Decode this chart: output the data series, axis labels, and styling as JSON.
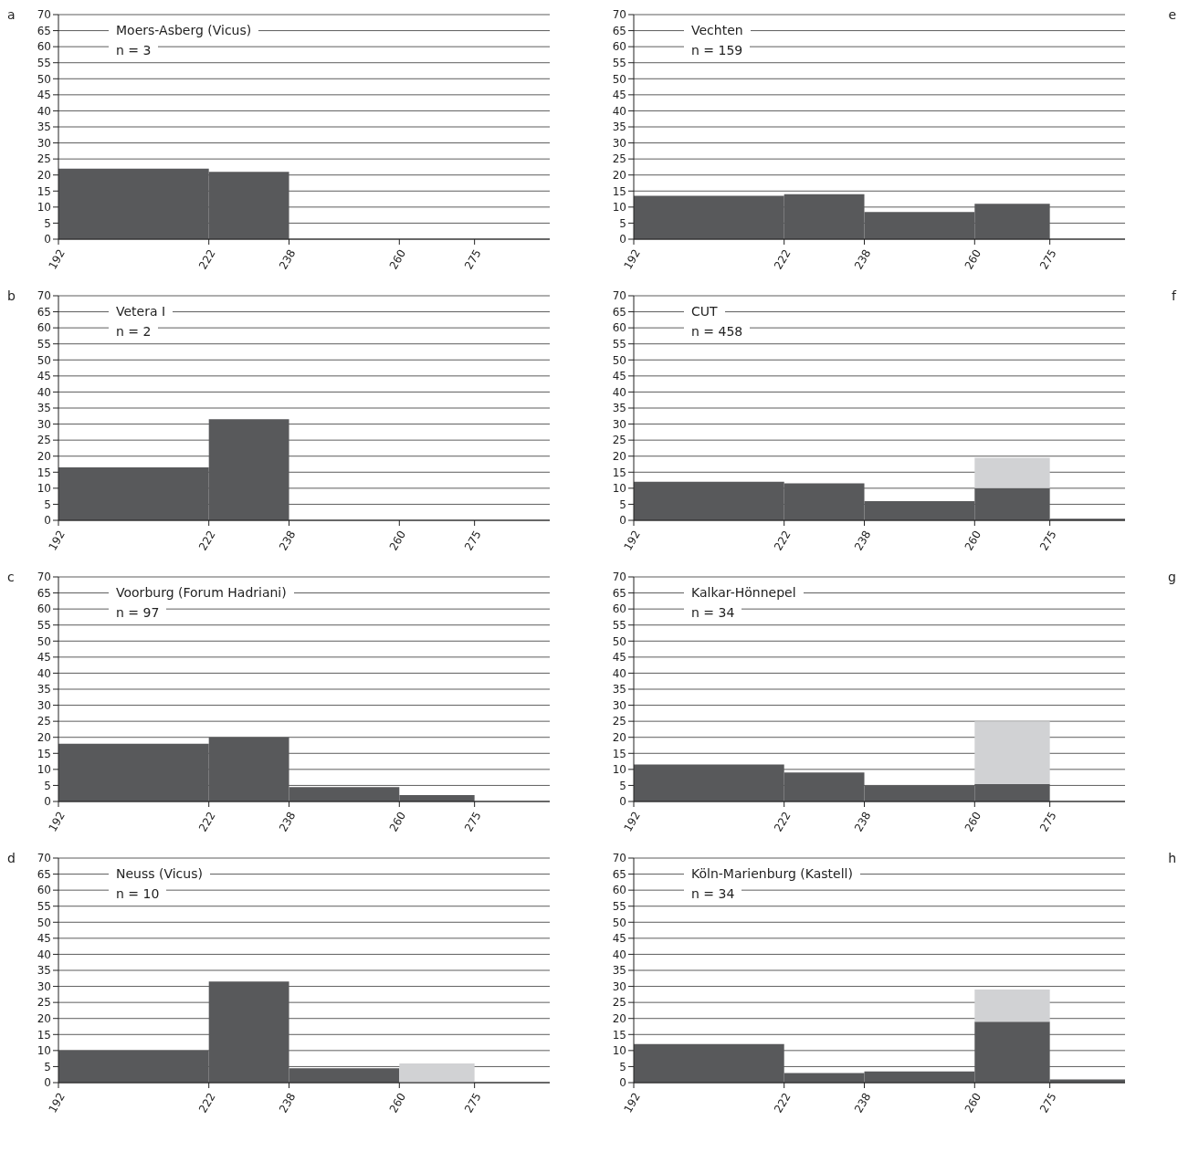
{
  "chart_data": [
    {
      "type": "histogram",
      "title": "Moers-Asberg (Vicus)",
      "subtitle": "n = 3",
      "annotations": [
        "a"
      ],
      "bins": [
        192,
        222,
        238
      ],
      "series": [
        {
          "color": "#58595b",
          "values": [
            22,
            21
          ]
        }
      ],
      "xlim": [
        192,
        290
      ],
      "xticks": [
        192,
        222,
        238,
        260,
        275
      ],
      "ylim": [
        0,
        70
      ],
      "yticks": [
        0,
        5,
        10,
        15,
        20,
        25,
        30,
        35,
        40,
        45,
        50,
        55,
        60,
        65,
        70
      ],
      "grid": "y"
    },
    {
      "type": "histogram",
      "title": "Vetera I",
      "subtitle": "n = 2",
      "annotations": [
        "b"
      ],
      "bins": [
        192,
        222,
        238
      ],
      "series": [
        {
          "color": "#58595b",
          "values": [
            16.5,
            31.5
          ]
        }
      ],
      "xlim": [
        192,
        290
      ],
      "xticks": [
        192,
        222,
        238,
        260,
        275
      ],
      "ylim": [
        0,
        70
      ],
      "yticks": [
        0,
        5,
        10,
        15,
        20,
        25,
        30,
        35,
        40,
        45,
        50,
        55,
        60,
        65,
        70
      ],
      "grid": "y"
    },
    {
      "type": "histogram",
      "title": "Voorburg (Forum Hadriani)",
      "subtitle": "n = 97",
      "annotations": [
        "c"
      ],
      "bins": [
        192,
        222,
        238,
        260,
        275
      ],
      "series": [
        {
          "color": "#58595b",
          "values": [
            18,
            20,
            4.5,
            2
          ]
        }
      ],
      "xlim": [
        192,
        290
      ],
      "xticks": [
        192,
        222,
        238,
        260,
        275
      ],
      "ylim": [
        0,
        70
      ],
      "yticks": [
        0,
        5,
        10,
        15,
        20,
        25,
        30,
        35,
        40,
        45,
        50,
        55,
        60,
        65,
        70
      ],
      "grid": "y"
    },
    {
      "type": "histogram",
      "title": "Neuss (Vicus)",
      "subtitle": "n = 10",
      "annotations": [
        "d"
      ],
      "bins": [
        192,
        222,
        238,
        260,
        275
      ],
      "series": [
        {
          "color": "#58595b",
          "values": [
            10,
            31.5,
            4.5,
            null
          ]
        },
        {
          "color": "#d1d2d4",
          "values": [
            null,
            null,
            null,
            6
          ]
        }
      ],
      "xlim": [
        192,
        290
      ],
      "xticks": [
        192,
        222,
        238,
        260,
        275
      ],
      "ylim": [
        0,
        70
      ],
      "yticks": [
        0,
        5,
        10,
        15,
        20,
        25,
        30,
        35,
        40,
        45,
        50,
        55,
        60,
        65,
        70
      ],
      "grid": "y"
    },
    {
      "type": "histogram",
      "title": "Vechten",
      "subtitle": "n = 159",
      "annotations": [
        "e"
      ],
      "bins": [
        192,
        222,
        238,
        260,
        275
      ],
      "series": [
        {
          "color": "#58595b",
          "values": [
            13.5,
            14,
            8.5,
            11
          ]
        }
      ],
      "xlim": [
        192,
        290
      ],
      "xticks": [
        192,
        222,
        238,
        260,
        275
      ],
      "ylim": [
        0,
        70
      ],
      "yticks": [
        0,
        5,
        10,
        15,
        20,
        25,
        30,
        35,
        40,
        45,
        50,
        55,
        60,
        65,
        70
      ],
      "grid": "y"
    },
    {
      "type": "histogram",
      "title": "CUT",
      "subtitle": "n = 458",
      "annotations": [
        "f"
      ],
      "bins": [
        192,
        222,
        238,
        260,
        275,
        290
      ],
      "series": [
        {
          "color": "#58595b",
          "values": [
            12,
            11.5,
            6,
            10,
            0.5
          ]
        },
        {
          "color": "#d1d2d4",
          "values": [
            null,
            null,
            null,
            9.5,
            null
          ],
          "base": [
            null,
            null,
            null,
            10,
            null
          ]
        }
      ],
      "xlim": [
        192,
        290
      ],
      "xticks": [
        192,
        222,
        238,
        260,
        275
      ],
      "ylim": [
        0,
        70
      ],
      "yticks": [
        0,
        5,
        10,
        15,
        20,
        25,
        30,
        35,
        40,
        45,
        50,
        55,
        60,
        65,
        70
      ],
      "grid": "y"
    },
    {
      "type": "histogram",
      "title": "Kalkar-Hönnepel",
      "subtitle": "n = 34",
      "annotations": [
        "g"
      ],
      "bins": [
        192,
        222,
        238,
        260,
        275
      ],
      "series": [
        {
          "color": "#58595b",
          "values": [
            11.5,
            9,
            5,
            5.5
          ]
        },
        {
          "color": "#d1d2d4",
          "values": [
            null,
            null,
            null,
            19.5
          ],
          "base": [
            null,
            null,
            null,
            5.5
          ]
        }
      ],
      "xlim": [
        192,
        290
      ],
      "xticks": [
        192,
        222,
        238,
        260,
        275
      ],
      "ylim": [
        0,
        70
      ],
      "yticks": [
        0,
        5,
        10,
        15,
        20,
        25,
        30,
        35,
        40,
        45,
        50,
        55,
        60,
        65,
        70
      ],
      "grid": "y"
    },
    {
      "type": "histogram",
      "title": "Köln-Marienburg (Kastell)",
      "subtitle": "n = 34",
      "annotations": [
        "h"
      ],
      "bins": [
        192,
        222,
        238,
        260,
        275,
        290
      ],
      "series": [
        {
          "color": "#58595b",
          "values": [
            12,
            3,
            3.5,
            19,
            1
          ]
        },
        {
          "color": "#d1d2d4",
          "values": [
            null,
            null,
            null,
            10,
            null
          ],
          "base": [
            null,
            null,
            null,
            19,
            null
          ]
        }
      ],
      "xlim": [
        192,
        290
      ],
      "xticks": [
        192,
        222,
        238,
        260,
        275
      ],
      "ylim": [
        0,
        70
      ],
      "yticks": [
        0,
        5,
        10,
        15,
        20,
        25,
        30,
        35,
        40,
        45,
        50,
        55,
        60,
        65,
        70
      ],
      "grid": "y"
    }
  ]
}
